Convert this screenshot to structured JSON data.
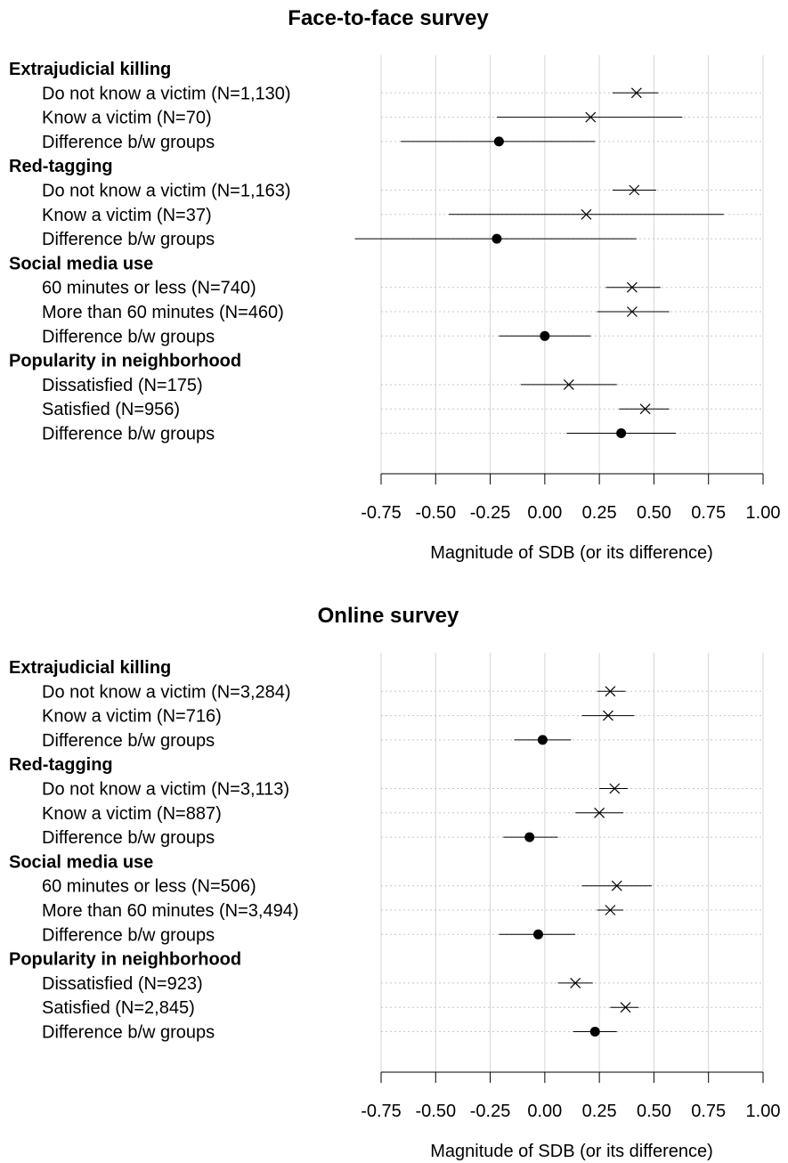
{
  "chart_data": [
    {
      "type": "scatter",
      "title": "Face-to-face survey",
      "xlabel": "Magnitude of SDB (or its difference)",
      "xlim": [
        -0.75,
        1.0
      ],
      "xticks": [
        "-0.75",
        "-0.50",
        "-0.25",
        "0.00",
        "0.25",
        "0.50",
        "0.75",
        "1.00"
      ],
      "grid": true,
      "groups": [
        {
          "name": "Extrajudicial killing",
          "rows": [
            {
              "label": "Do not know a victim (N=1,130)",
              "marker": "cross",
              "estimate": 0.42,
              "ci": [
                0.31,
                0.52
              ]
            },
            {
              "label": "Know a victim (N=70)",
              "marker": "cross",
              "estimate": 0.21,
              "ci": [
                -0.22,
                0.63
              ]
            },
            {
              "label": "Difference b/w groups",
              "marker": "dot",
              "estimate": -0.21,
              "ci": [
                -0.66,
                0.23
              ]
            }
          ]
        },
        {
          "name": "Red-tagging",
          "rows": [
            {
              "label": "Do not know a victim (N=1,163)",
              "marker": "cross",
              "estimate": 0.41,
              "ci": [
                0.31,
                0.51
              ]
            },
            {
              "label": "Know a victim (N=37)",
              "marker": "cross",
              "estimate": 0.19,
              "ci": [
                -0.44,
                0.82
              ]
            },
            {
              "label": "Difference b/w groups",
              "marker": "dot",
              "estimate": -0.22,
              "ci": [
                -0.87,
                0.42
              ]
            }
          ]
        },
        {
          "name": "Social media use",
          "rows": [
            {
              "label": "60 minutes or less (N=740)",
              "marker": "cross",
              "estimate": 0.4,
              "ci": [
                0.28,
                0.53
              ]
            },
            {
              "label": "More than 60 minutes (N=460)",
              "marker": "cross",
              "estimate": 0.4,
              "ci": [
                0.24,
                0.57
              ]
            },
            {
              "label": "Difference b/w groups",
              "marker": "dot",
              "estimate": 0.0,
              "ci": [
                -0.21,
                0.21
              ]
            }
          ]
        },
        {
          "name": "Popularity in neighborhood",
          "rows": [
            {
              "label": "Dissatisfied (N=175)",
              "marker": "cross",
              "estimate": 0.11,
              "ci": [
                -0.11,
                0.33
              ]
            },
            {
              "label": "Satisfied (N=956)",
              "marker": "cross",
              "estimate": 0.46,
              "ci": [
                0.34,
                0.57
              ]
            },
            {
              "label": "Difference b/w groups",
              "marker": "dot",
              "estimate": 0.35,
              "ci": [
                0.1,
                0.6
              ]
            }
          ]
        }
      ]
    },
    {
      "type": "scatter",
      "title": "Online survey",
      "xlabel": "Magnitude of SDB (or its difference)",
      "xlim": [
        -0.75,
        1.0
      ],
      "xticks": [
        "-0.75",
        "-0.50",
        "-0.25",
        "0.00",
        "0.25",
        "0.50",
        "0.75",
        "1.00"
      ],
      "grid": true,
      "groups": [
        {
          "name": "Extrajudicial killing",
          "rows": [
            {
              "label": "Do not know a victim (N=3,284)",
              "marker": "cross",
              "estimate": 0.3,
              "ci": [
                0.24,
                0.37
              ]
            },
            {
              "label": "Know a victim (N=716)",
              "marker": "cross",
              "estimate": 0.29,
              "ci": [
                0.17,
                0.41
              ]
            },
            {
              "label": "Difference b/w groups",
              "marker": "dot",
              "estimate": -0.01,
              "ci": [
                -0.14,
                0.12
              ]
            }
          ]
        },
        {
          "name": "Red-tagging",
          "rows": [
            {
              "label": "Do not know a victim (N=3,113)",
              "marker": "cross",
              "estimate": 0.32,
              "ci": [
                0.25,
                0.38
              ]
            },
            {
              "label": "Know a victim (N=887)",
              "marker": "cross",
              "estimate": 0.25,
              "ci": [
                0.14,
                0.36
              ]
            },
            {
              "label": "Difference b/w groups",
              "marker": "dot",
              "estimate": -0.07,
              "ci": [
                -0.19,
                0.06
              ]
            }
          ]
        },
        {
          "name": "Social media use",
          "rows": [
            {
              "label": "60 minutes or less (N=506)",
              "marker": "cross",
              "estimate": 0.33,
              "ci": [
                0.17,
                0.49
              ]
            },
            {
              "label": "More than 60 minutes (N=3,494)",
              "marker": "cross",
              "estimate": 0.3,
              "ci": [
                0.24,
                0.36
              ]
            },
            {
              "label": "Difference b/w groups",
              "marker": "dot",
              "estimate": -0.03,
              "ci": [
                -0.21,
                0.14
              ]
            }
          ]
        },
        {
          "name": "Popularity in neighborhood",
          "rows": [
            {
              "label": "Dissatisfied (N=923)",
              "marker": "cross",
              "estimate": 0.14,
              "ci": [
                0.06,
                0.22
              ]
            },
            {
              "label": "Satisfied (N=2,845)",
              "marker": "cross",
              "estimate": 0.37,
              "ci": [
                0.3,
                0.43
              ]
            },
            {
              "label": "Difference b/w groups",
              "marker": "dot",
              "estimate": 0.23,
              "ci": [
                0.13,
                0.33
              ]
            }
          ]
        }
      ]
    }
  ]
}
